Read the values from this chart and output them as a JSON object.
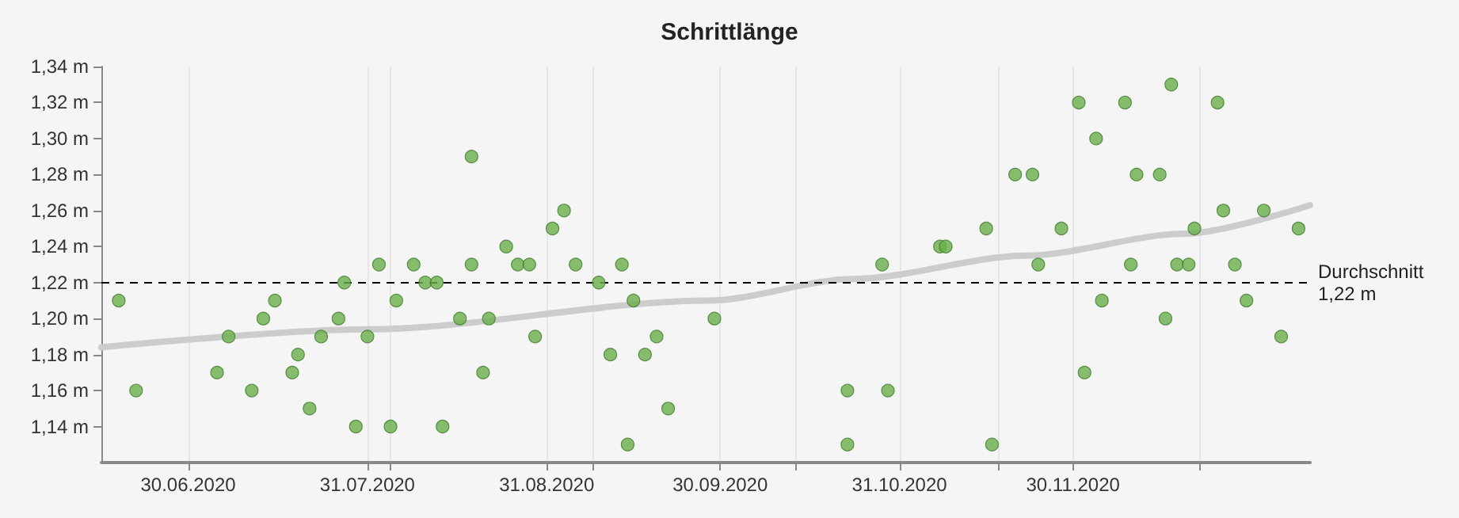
{
  "chart_data": {
    "type": "scatter",
    "title": "Schrittlänge",
    "marker": "circle",
    "grid": "x",
    "xlim": [
      "2020-06-15",
      "2021-01-10"
    ],
    "xticks": [
      {
        "value": "2020-06-30",
        "label": "30.06.2020"
      },
      {
        "value": "2020-07-31",
        "label": "31.07.2020"
      },
      {
        "value": "2020-08-04",
        "label": null
      },
      {
        "value": "2020-08-31",
        "label": "31.08.2020"
      },
      {
        "value": "2020-09-08",
        "label": null
      },
      {
        "value": "2020-09-30",
        "label": "30.09.2020"
      },
      {
        "value": "2020-10-13",
        "label": null
      },
      {
        "value": "2020-10-31",
        "label": "31.10.2020"
      },
      {
        "value": "2020-11-17",
        "label": null
      },
      {
        "value": "2020-11-30",
        "label": "30.11.2020"
      },
      {
        "value": "2020-12-22",
        "label": null
      }
    ],
    "ylim": [
      1.12,
      1.34
    ],
    "yticks": [
      {
        "value": 1.14,
        "label": "1,14 m"
      },
      {
        "value": 1.16,
        "label": "1,16 m"
      },
      {
        "value": 1.18,
        "label": "1,18 m"
      },
      {
        "value": 1.2,
        "label": "1,20 m"
      },
      {
        "value": 1.22,
        "label": "1,22 m"
      },
      {
        "value": 1.24,
        "label": "1,24 m"
      },
      {
        "value": 1.26,
        "label": "1,26 m"
      },
      {
        "value": 1.28,
        "label": "1,28 m"
      },
      {
        "value": 1.3,
        "label": "1,30 m"
      },
      {
        "value": 1.32,
        "label": "1,32 m"
      },
      {
        "value": 1.34,
        "label": "1,34 m"
      }
    ],
    "ref_lines": [
      {
        "axis": "y",
        "value": 1.22,
        "label": "Durchschnitt\n1,22 m",
        "color": "#000000",
        "line_style": "dashed"
      }
    ],
    "series": [
      {
        "color": "#6aaf4a",
        "x": [
          "2020-06-18",
          "2020-06-21",
          "2020-07-05",
          "2020-07-07",
          "2020-07-11",
          "2020-07-13",
          "2020-07-15",
          "2020-07-18",
          "2020-07-19",
          "2020-07-21",
          "2020-07-23",
          "2020-07-26",
          "2020-07-27",
          "2020-07-29",
          "2020-07-31",
          "2020-08-02",
          "2020-08-04",
          "2020-08-05",
          "2020-08-08",
          "2020-08-10",
          "2020-08-12",
          "2020-08-13",
          "2020-08-16",
          "2020-08-18",
          "2020-08-18",
          "2020-08-20",
          "2020-08-21",
          "2020-08-24",
          "2020-08-26",
          "2020-08-28",
          "2020-08-29",
          "2020-09-01",
          "2020-09-03",
          "2020-09-05",
          "2020-09-09",
          "2020-09-11",
          "2020-09-13",
          "2020-09-14",
          "2020-09-15",
          "2020-09-17",
          "2020-09-19",
          "2020-09-21",
          "2020-09-29",
          "2020-10-22",
          "2020-10-22",
          "2020-10-28",
          "2020-10-29",
          "2020-11-07",
          "2020-11-08",
          "2020-11-15",
          "2020-11-16",
          "2020-11-20",
          "2020-11-23",
          "2020-11-24",
          "2020-11-28",
          "2020-12-01",
          "2020-12-02",
          "2020-12-04",
          "2020-12-05",
          "2020-12-09",
          "2020-12-10",
          "2020-12-11",
          "2020-12-15",
          "2020-12-16",
          "2020-12-17",
          "2020-12-18",
          "2020-12-20",
          "2020-12-21",
          "2020-12-25",
          "2020-12-26",
          "2020-12-28",
          "2020-12-30",
          "2021-01-02",
          "2021-01-05",
          "2021-01-08"
        ],
        "values": [
          1.21,
          1.16,
          1.17,
          1.19,
          1.16,
          1.2,
          1.21,
          1.17,
          1.18,
          1.15,
          1.19,
          1.2,
          1.22,
          1.14,
          1.19,
          1.23,
          1.14,
          1.21,
          1.23,
          1.22,
          1.22,
          1.14,
          1.2,
          1.29,
          1.23,
          1.17,
          1.2,
          1.24,
          1.23,
          1.23,
          1.19,
          1.25,
          1.26,
          1.23,
          1.22,
          1.18,
          1.23,
          1.13,
          1.21,
          1.18,
          1.19,
          1.15,
          1.2,
          1.16,
          1.13,
          1.23,
          1.16,
          1.24,
          1.24,
          1.25,
          1.13,
          1.28,
          1.28,
          1.23,
          1.25,
          1.32,
          1.17,
          1.3,
          1.21,
          1.32,
          1.23,
          1.28,
          1.28,
          1.2,
          1.33,
          1.23,
          1.23,
          1.25,
          1.32,
          1.26,
          1.23,
          1.21,
          1.26,
          1.19,
          1.25
        ]
      },
      {
        "type": "line",
        "color": "#cccccc",
        "marker": "none",
        "line_style": "solid",
        "x": [
          "2020-06-15",
          "2020-07-31",
          "2020-09-28",
          "2020-10-23",
          "2020-11-22",
          "2020-12-19",
          "2021-01-10"
        ],
        "values": [
          1.184,
          1.194,
          1.21,
          1.222,
          1.235,
          1.247,
          1.263
        ]
      }
    ]
  }
}
